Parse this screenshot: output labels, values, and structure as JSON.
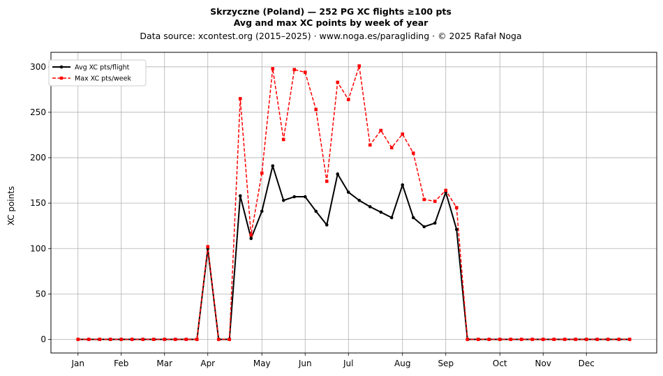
{
  "chart_data": {
    "type": "line",
    "title": "Skrzyczne (Poland)  —  252 PG XC flights ≥100 pts",
    "subtitle": "Avg and max XC points by week of year",
    "source": "Data source: xcontest.org (2015–2025)  ·  www.noga.es/paragliding  ·  © 2025 Rafał Noga",
    "xlabel": "",
    "ylabel": "XC points",
    "x_unit": "week of year",
    "xlim": [
      -2.5,
      53.5
    ],
    "ylim": [
      -15,
      316
    ],
    "grid": true,
    "legend_position": "top-left",
    "month_ticks": [
      {
        "label": "Jan",
        "week": 0
      },
      {
        "label": "Feb",
        "week": 4
      },
      {
        "label": "Mar",
        "week": 8
      },
      {
        "label": "Apr",
        "week": 12
      },
      {
        "label": "May",
        "week": 17
      },
      {
        "label": "Jun",
        "week": 21
      },
      {
        "label": "Jul",
        "week": 25
      },
      {
        "label": "Aug",
        "week": 30
      },
      {
        "label": "Sep",
        "week": 34
      },
      {
        "label": "Oct",
        "week": 39
      },
      {
        "label": "Nov",
        "week": 43
      },
      {
        "label": "Dec",
        "week": 47
      }
    ],
    "y_ticks": [
      0,
      50,
      100,
      150,
      200,
      250,
      300
    ],
    "x": [
      0,
      1,
      2,
      3,
      4,
      5,
      6,
      7,
      8,
      9,
      10,
      11,
      12,
      13,
      14,
      15,
      16,
      17,
      18,
      19,
      20,
      21,
      22,
      23,
      24,
      25,
      26,
      27,
      28,
      29,
      30,
      31,
      32,
      33,
      34,
      35,
      36,
      37,
      38,
      39,
      40,
      41,
      42,
      43,
      44,
      45,
      46,
      47,
      48,
      49,
      50,
      51
    ],
    "series": [
      {
        "name": "Avg XC pts/flight",
        "color": "#000000",
        "values": [
          0,
          0,
          0,
          0,
          0,
          0,
          0,
          0,
          0,
          0,
          0,
          0,
          100,
          0,
          0,
          158,
          111,
          141,
          191,
          153,
          157,
          157,
          141,
          126,
          182,
          162,
          153,
          146,
          140,
          134,
          170,
          134,
          124,
          128,
          162,
          121,
          0,
          0,
          0,
          0,
          0,
          0,
          0,
          0,
          0,
          0,
          0,
          0,
          0,
          0,
          0,
          0
        ]
      },
      {
        "name": "Max XC pts/week",
        "color": "#ff0000",
        "values": [
          0,
          0,
          0,
          0,
          0,
          0,
          0,
          0,
          0,
          0,
          0,
          0,
          102,
          0,
          0,
          265,
          115,
          183,
          298,
          220,
          297,
          294,
          253,
          174,
          283,
          264,
          301,
          214,
          230,
          211,
          226,
          205,
          154,
          152,
          164,
          145,
          0,
          0,
          0,
          0,
          0,
          0,
          0,
          0,
          0,
          0,
          0,
          0,
          0,
          0,
          0,
          0
        ]
      }
    ]
  }
}
